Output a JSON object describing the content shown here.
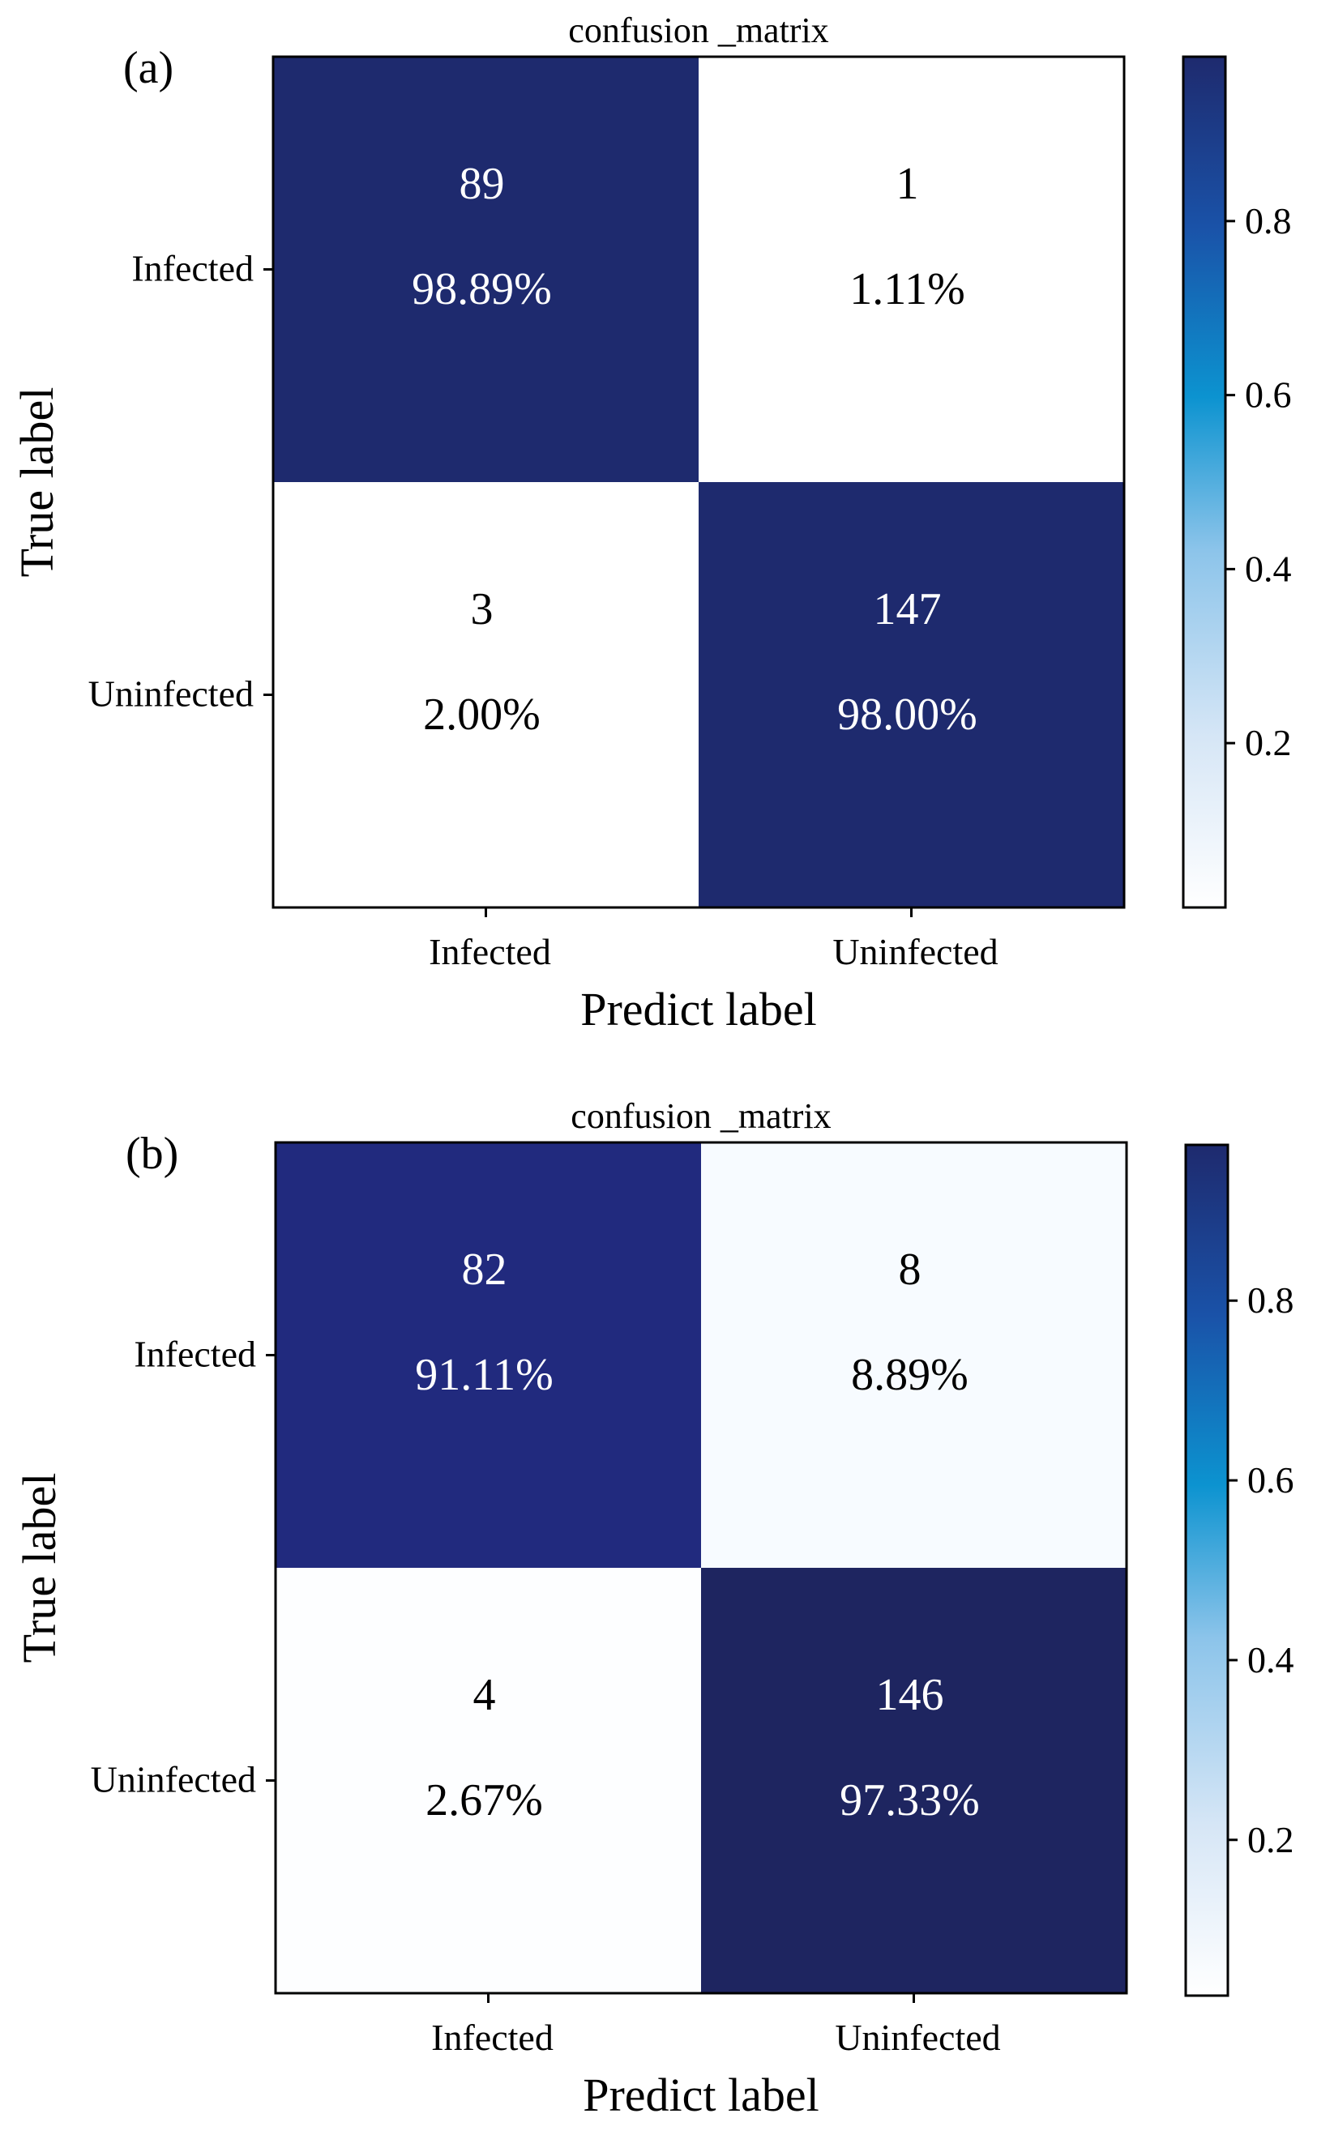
{
  "chart_data": [
    {
      "type": "heatmap",
      "panel_label": "(a)",
      "title": "confusion _matrix",
      "xlabel": "Predict label",
      "ylabel": "True label",
      "row_labels": [
        "Infected",
        "Uninfected"
      ],
      "col_labels": [
        "Infected",
        "Uninfected"
      ],
      "counts": [
        [
          89,
          1
        ],
        [
          3,
          147
        ]
      ],
      "percent_labels": [
        [
          "98.89%",
          "1.11%"
        ],
        [
          "2.00%",
          "98.00%"
        ]
      ],
      "values": [
        [
          0.9889,
          0.0111
        ],
        [
          0.02,
          0.98
        ]
      ],
      "colorbar": {
        "range": [
          0.0111,
          0.9889
        ],
        "ticks": [
          0.2,
          0.4,
          0.6,
          0.8
        ],
        "colormap": "Blues"
      }
    },
    {
      "type": "heatmap",
      "panel_label": "(b)",
      "title": "confusion _matrix",
      "xlabel": "Predict label",
      "ylabel": "True label",
      "row_labels": [
        "Infected",
        "Uninfected"
      ],
      "col_labels": [
        "Infected",
        "Uninfected"
      ],
      "counts": [
        [
          82,
          8
        ],
        [
          4,
          146
        ]
      ],
      "percent_labels": [
        [
          "91.11%",
          "8.89%"
        ],
        [
          "2.67%",
          "97.33%"
        ]
      ],
      "values": [
        [
          0.9111,
          0.0889
        ],
        [
          0.0267,
          0.9733
        ]
      ],
      "colorbar": {
        "range": [
          0.0267,
          0.9733
        ],
        "ticks": [
          0.2,
          0.4,
          0.6,
          0.8
        ],
        "colormap": "Blues"
      }
    }
  ],
  "colors": {
    "text_on_dark": "#ffffff",
    "text_on_light": "#000000",
    "axis_line": "#000000",
    "blues_scale": [
      "#f7fbff",
      "#c6dbef",
      "#6baed6",
      "#0689c8",
      "#1a5aa8",
      "#1f2d7a",
      "#1c2560"
    ]
  }
}
